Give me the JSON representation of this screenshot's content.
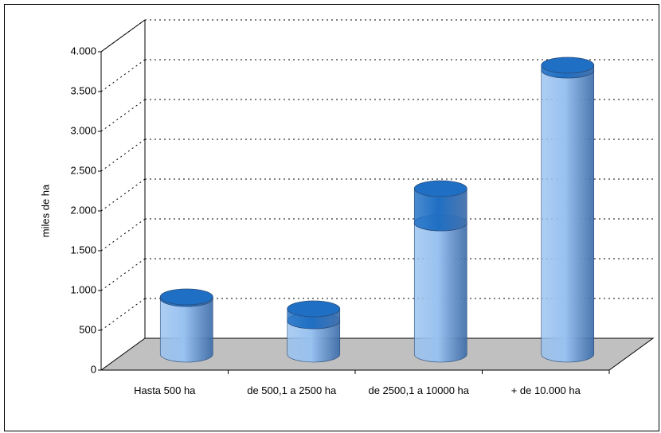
{
  "chart_data": {
    "type": "bar3d_stacked_cylinder",
    "y_label": "miles de ha",
    "categories": [
      "Hasta 500 ha",
      "de 500,1 a 2500 ha",
      "de 2500,1 a 10000 ha",
      "+ de 10.000 ha"
    ],
    "series": [
      {
        "color": "#99c2f0",
        "values": [
          700,
          420,
          1650,
          3570
        ]
      },
      {
        "color": "#1f6fc4",
        "values": [
          20,
          150,
          430,
          60
        ]
      }
    ],
    "ylim": [
      0,
      4000
    ],
    "yticks": [
      0,
      500,
      {
        "value": 1000,
        "label": "1.000"
      },
      {
        "value": 1500,
        "label": "1.500"
      },
      {
        "value": 2000,
        "label": "2.000"
      },
      {
        "value": 2500,
        "label": "2.500"
      },
      {
        "value": 3000,
        "label": "3.000"
      },
      {
        "value": 3500,
        "label": "3.500"
      },
      {
        "value": 4000,
        "label": "4.000"
      }
    ],
    "grid": true
  }
}
